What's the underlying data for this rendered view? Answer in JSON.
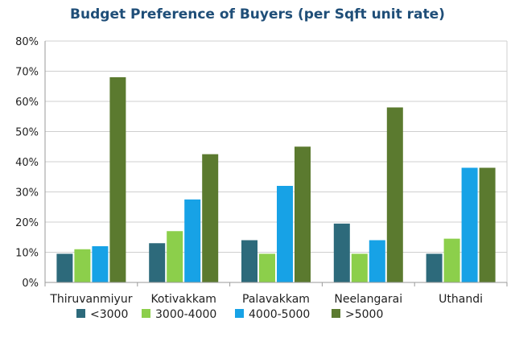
{
  "chart_data": {
    "type": "bar",
    "title": "Budget Preference of Buyers (per Sqft unit rate)",
    "xlabel": "",
    "ylabel": "",
    "categories": [
      "Thiruvanmiyur",
      "Kotivakkam",
      "Palavakkam",
      "Neelangarai",
      "Uthandi"
    ],
    "series": [
      {
        "name": "<3000",
        "values": [
          9.5,
          13,
          14,
          19.5,
          9.5
        ]
      },
      {
        "name": "3000-4000",
        "values": [
          11,
          17,
          9.5,
          9.5,
          14.5
        ]
      },
      {
        "name": "4000-5000",
        "values": [
          12,
          27.5,
          32,
          14,
          38
        ]
      },
      {
        "name": ">5000",
        "values": [
          68,
          42.5,
          45,
          58,
          38
        ]
      }
    ],
    "ylim": [
      0,
      80
    ],
    "yticks": [
      0,
      10,
      20,
      30,
      40,
      50,
      60,
      70,
      80
    ],
    "ytick_format": "percent",
    "grid": true,
    "legend_position": "bottom"
  },
  "colors": {
    "series": [
      "#2d6a7b",
      "#8ccf4b",
      "#17a2e6",
      "#5b7a2f"
    ],
    "title": "#1f4e78",
    "axis": "#9a9a9a",
    "grid": "#cfcfcf"
  }
}
